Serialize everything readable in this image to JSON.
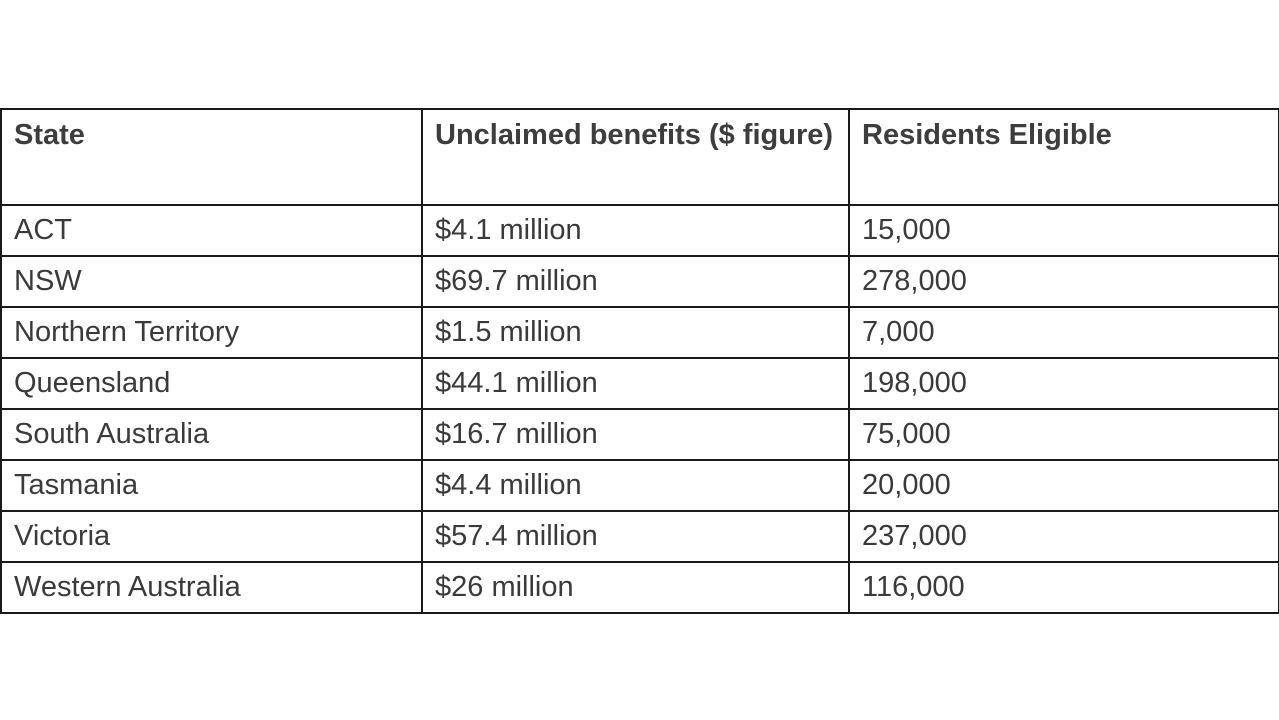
{
  "table": {
    "headers": [
      "State",
      "Unclaimed benefits ($ figure)",
      "Residents Eligible"
    ],
    "rows": [
      [
        "ACT",
        "$4.1 million",
        "15,000"
      ],
      [
        "NSW",
        "$69.7 million",
        "278,000"
      ],
      [
        "Northern Territory",
        "$1.5 million",
        "7,000"
      ],
      [
        "Queensland",
        "$44.1 million",
        "198,000"
      ],
      [
        "South Australia",
        "$16.7 million",
        "75,000"
      ],
      [
        "Tasmania",
        "$4.4 million",
        "20,000"
      ],
      [
        "Victoria",
        "$57.4 million",
        "237,000"
      ],
      [
        "Western Australia",
        "$26 million",
        "116,000"
      ]
    ]
  }
}
